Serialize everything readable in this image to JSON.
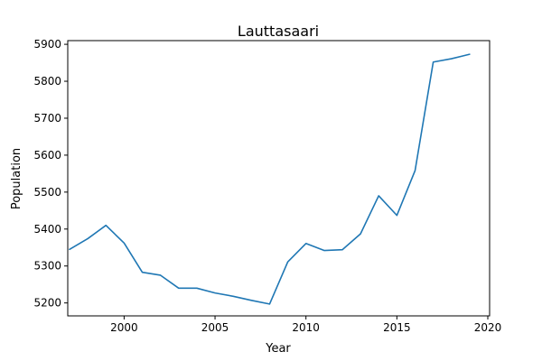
{
  "chart_data": {
    "type": "line",
    "title": "Lauttasaari",
    "xlabel": "Year",
    "ylabel": "Population",
    "xlim": [
      1996.9,
      2020.1
    ],
    "ylim": [
      5165,
      5910
    ],
    "xticks": [
      2000,
      2005,
      2010,
      2015,
      2020
    ],
    "yticks": [
      5200,
      5300,
      5400,
      5500,
      5600,
      5700,
      5800,
      5900
    ],
    "grid": false,
    "series": [
      {
        "color": "#1f77b4",
        "x": [
          1997,
          1998,
          1999,
          2000,
          2001,
          2002,
          2003,
          2004,
          2005,
          2006,
          2007,
          2008,
          2009,
          2010,
          2011,
          2012,
          2013,
          2014,
          2015,
          2016,
          2017,
          2018,
          2019
        ],
        "y": [
          5345,
          5374,
          5410,
          5362,
          5283,
          5275,
          5240,
          5240,
          5227,
          5218,
          5207,
          5197,
          5311,
          5361,
          5342,
          5344,
          5387,
          5490,
          5437,
          5558,
          5852,
          5861,
          5873
        ]
      }
    ]
  }
}
